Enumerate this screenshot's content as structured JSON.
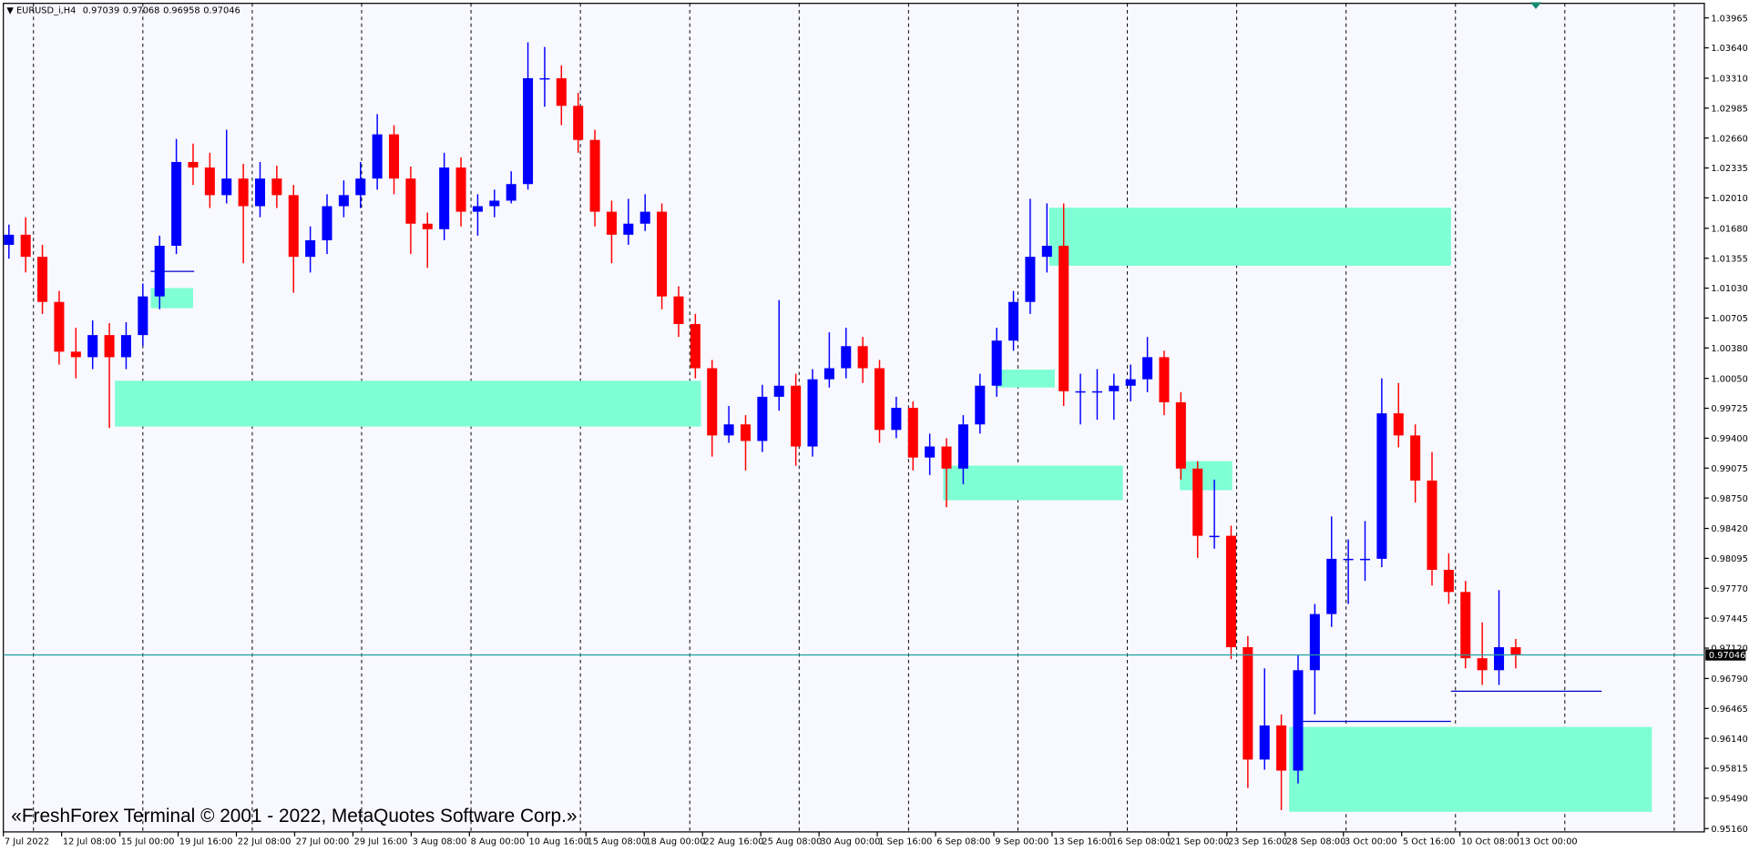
{
  "chart_data": {
    "type": "candlestick",
    "title": "EURUSD_i,H4",
    "header_ohlc": [
      "0.97039",
      "0.97068",
      "0.96958",
      "0.97046"
    ],
    "watermark": "«FreshForex Terminal © 2001 - 2022, MetaQuotes Software Corp.»",
    "up_color": "#0000ff",
    "down_color": "#ff0000",
    "x_labels": [
      "7 Jul 2022",
      "12 Jul 08:00",
      "15 Jul 00:00",
      "19 Jul 16:00",
      "22 Jul 08:00",
      "27 Jul 00:00",
      "29 Jul 16:00",
      "3 Aug 08:00",
      "8 Aug 00:00",
      "10 Aug 16:00",
      "15 Aug 08:00",
      "18 Aug 00:00",
      "22 Aug 16:00",
      "25 Aug 08:00",
      "30 Aug 00:00",
      "1 Sep 16:00",
      "6 Sep 08:00",
      "9 Sep 00:00",
      "13 Sep 16:00",
      "16 Sep 08:00",
      "21 Sep 00:00",
      "23 Sep 16:00",
      "28 Sep 08:00",
      "3 Oct 00:00",
      "5 Oct 16:00",
      "10 Oct 08:00",
      "13 Oct 00:00"
    ],
    "ylim": [
      0.95124,
      1.04123
    ],
    "yticks": [
      1.03965,
      {
        "value": 1.0364,
        "label": "1.03640"
      },
      {
        "value": 1.0331,
        "label": "1.03310"
      },
      1.02985,
      {
        "value": 1.0266,
        "label": "1.02660"
      },
      1.02335,
      {
        "value": 1.0201,
        "label": "1.02010"
      },
      {
        "value": 1.0168,
        "label": "1.01680"
      },
      1.01355,
      {
        "value": 1.0103,
        "label": "1.01030"
      },
      1.00705,
      {
        "value": 1.0038,
        "label": "1.00380"
      },
      {
        "value": 1.0005,
        "label": "1.00050"
      },
      0.99725,
      {
        "value": 0.994,
        "label": "0.99400"
      },
      0.99075,
      {
        "value": 0.9875,
        "label": "0.98750"
      },
      {
        "value": 0.9842,
        "label": "0.98420"
      },
      0.98095,
      {
        "value": 0.9777,
        "label": "0.97770"
      },
      0.97445,
      {
        "value": 0.9712,
        "label": "0.97120"
      },
      {
        "value": 0.9679,
        "label": "0.96790"
      },
      0.96465,
      {
        "value": 0.9614,
        "label": "0.96140"
      },
      0.95815,
      {
        "value": 0.9549,
        "label": "0.95490"
      },
      {
        "value": 0.9516,
        "label": "0.95160"
      }
    ],
    "open": [
      1.015,
      1.0161,
      1.0137,
      1.0088,
      1.0034,
      1.0028,
      1.0052,
      1.0028,
      1.0052,
      1.0094,
      1.0149,
      1.024,
      1.0234,
      1.0204,
      1.0222,
      1.0192,
      1.0222,
      1.0204,
      1.0137,
      1.0155,
      1.0192,
      1.0204,
      1.0222,
      1.027,
      1.0222,
      1.0173,
      1.0167,
      1.0234,
      1.0186,
      1.0192,
      1.0198,
      1.0216,
      1.0331,
      1.0331,
      1.0301,
      1.0264,
      1.0186,
      1.0161,
      1.0173,
      1.0186,
      1.0094,
      1.0064,
      1.0016,
      0.9943,
      0.9955,
      0.9937,
      0.9985,
      0.9997,
      0.9931,
      1.0004,
      1.0016,
      1.004,
      1.0016,
      0.9949,
      0.9973,
      0.9919,
      0.9931,
      0.9907,
      0.9955,
      0.9997,
      1.0046,
      1.0088,
      1.0137,
      1.0149,
      0.9991,
      0.9991,
      0.9991,
      0.9997,
      1.0004,
      1.0028,
      0.9979,
      0.9907,
      0.9834,
      0.9834,
      0.9713,
      0.9591,
      0.9628,
      0.9579,
      0.9688,
      0.9749,
      0.9809,
      0.9809,
      0.9809,
      0.9967,
      0.9943,
      0.9894,
      0.9797,
      0.9773,
      0.9701,
      0.9688,
      0.9713
    ],
    "high": [
      1.0172,
      1.018,
      1.015,
      1.01,
      1.006,
      1.0068,
      1.0065,
      1.0066,
      1.0108,
      1.016,
      1.0265,
      1.026,
      1.025,
      1.0275,
      1.0238,
      1.024,
      1.0236,
      1.0215,
      1.017,
      1.0205,
      1.022,
      1.024,
      1.0292,
      1.028,
      1.0235,
      1.0185,
      1.025,
      1.0245,
      1.0205,
      1.021,
      1.023,
      1.037,
      1.0365,
      1.0345,
      1.0315,
      1.0275,
      1.0198,
      1.02,
      1.0205,
      1.0195,
      1.0105,
      1.0075,
      1.0025,
      0.9975,
      0.9965,
      0.9998,
      1.009,
      1.001,
      1.0015,
      1.0055,
      1.006,
      1.005,
      1.0025,
      0.9985,
      0.998,
      0.9945,
      0.994,
      0.9965,
      1.001,
      1.006,
      1.01,
      1.02,
      1.0195,
      1.0195,
      1.001,
      1.0015,
      1.001,
      1.002,
      1.005,
      1.0035,
      0.999,
      0.9915,
      0.9895,
      0.9845,
      0.9725,
      0.969,
      0.964,
      0.9705,
      0.976,
      0.9855,
      0.983,
      0.985,
      1.0005,
      1.0,
      0.9955,
      0.9925,
      0.9815,
      0.9785,
      0.974,
      0.9775,
      0.9722
    ],
    "low": [
      1.0135,
      1.012,
      1.0075,
      1.002,
      1.0005,
      1.0015,
      0.9951,
      1.0015,
      1.004,
      1.008,
      1.014,
      1.0215,
      1.019,
      1.0195,
      1.013,
      1.018,
      1.019,
      1.0098,
      1.012,
      1.014,
      1.018,
      1.019,
      1.021,
      1.0205,
      1.014,
      1.0125,
      1.0155,
      1.017,
      1.016,
      1.018,
      1.0195,
      1.021,
      1.03,
      1.028,
      1.025,
      1.017,
      1.013,
      1.015,
      1.0165,
      1.008,
      1.005,
      1.0005,
      0.992,
      0.9935,
      0.9905,
      0.9925,
      0.997,
      0.991,
      0.992,
      0.9995,
      1.0005,
      1.0,
      0.9935,
      0.994,
      0.9905,
      0.99,
      0.9865,
      0.989,
      0.9945,
      0.9985,
      1.0035,
      1.0075,
      1.012,
      0.9975,
      0.9955,
      0.996,
      0.996,
      0.998,
      0.999,
      0.9965,
      0.9895,
      0.981,
      0.982,
      0.97,
      0.956,
      0.958,
      0.9536,
      0.9565,
      0.964,
      0.9735,
      0.976,
      0.9785,
      0.98,
      0.993,
      0.987,
      0.978,
      0.976,
      0.969,
      0.9672,
      0.9672,
      0.969
    ],
    "close": [
      1.0161,
      1.0137,
      1.0088,
      1.0034,
      1.0028,
      1.0052,
      1.0028,
      1.0052,
      1.0094,
      1.0149,
      1.024,
      1.0234,
      1.0204,
      1.0222,
      1.0192,
      1.0222,
      1.0204,
      1.0137,
      1.0155,
      1.0192,
      1.0204,
      1.0222,
      1.027,
      1.0222,
      1.0173,
      1.0167,
      1.0234,
      1.0186,
      1.0192,
      1.0198,
      1.0216,
      1.0331,
      1.0331,
      1.0301,
      1.0264,
      1.0186,
      1.0161,
      1.0173,
      1.0186,
      1.0094,
      1.0064,
      1.0016,
      0.9943,
      0.9955,
      0.9937,
      0.9985,
      0.9997,
      0.9931,
      1.0004,
      1.0016,
      1.004,
      1.0016,
      0.9949,
      0.9973,
      0.9919,
      0.9931,
      0.9907,
      0.9955,
      0.9997,
      1.0046,
      1.0088,
      1.0137,
      1.0149,
      0.9991,
      0.9991,
      0.9991,
      0.9997,
      1.0004,
      1.0028,
      0.9979,
      0.9907,
      0.9834,
      0.9834,
      0.9713,
      0.9591,
      0.9628,
      0.9579,
      0.9688,
      0.9749,
      0.9809,
      0.9809,
      0.9809,
      0.9967,
      0.9943,
      0.9894,
      0.9797,
      0.9773,
      0.9701,
      0.9688,
      0.9713,
      0.97046
    ]
  }
}
